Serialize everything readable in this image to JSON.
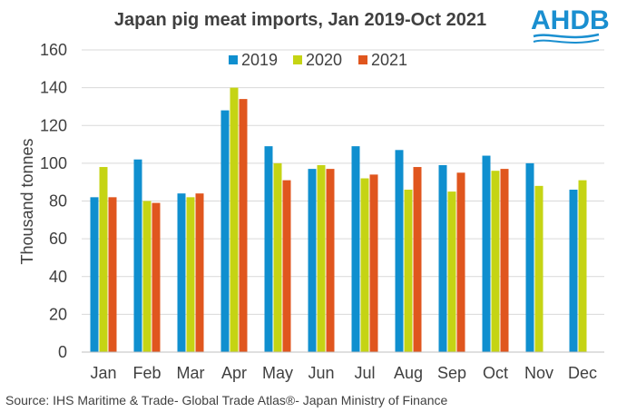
{
  "logo": {
    "text": "AHDB"
  },
  "source": "Source: IHS Maritime & Trade- Global Trade Atlas®- Japan Ministry of Finance",
  "chart_data": {
    "type": "bar",
    "title": "Japan pig meat imports, Jan 2019-Oct 2021",
    "xlabel": "",
    "ylabel": "Thousand tonnes",
    "ylim": [
      0,
      160
    ],
    "yticks": [
      0,
      20,
      40,
      60,
      80,
      100,
      120,
      140,
      160
    ],
    "grid": true,
    "legend_position": "top",
    "categories": [
      "Jan",
      "Feb",
      "Mar",
      "Apr",
      "May",
      "Jun",
      "Jul",
      "Aug",
      "Sep",
      "Oct",
      "Nov",
      "Dec"
    ],
    "series": [
      {
        "name": "2019",
        "color": "#0f8fcf",
        "values": [
          82,
          102,
          84,
          128,
          109,
          97,
          109,
          107,
          99,
          104,
          100,
          86
        ]
      },
      {
        "name": "2020",
        "color": "#c5d414",
        "values": [
          98,
          80,
          82,
          140,
          100,
          99,
          92,
          86,
          85,
          96,
          88,
          91
        ]
      },
      {
        "name": "2021",
        "color": "#e0561e",
        "values": [
          82,
          79,
          84,
          134,
          91,
          97,
          94,
          98,
          95,
          97,
          null,
          null
        ]
      }
    ]
  }
}
